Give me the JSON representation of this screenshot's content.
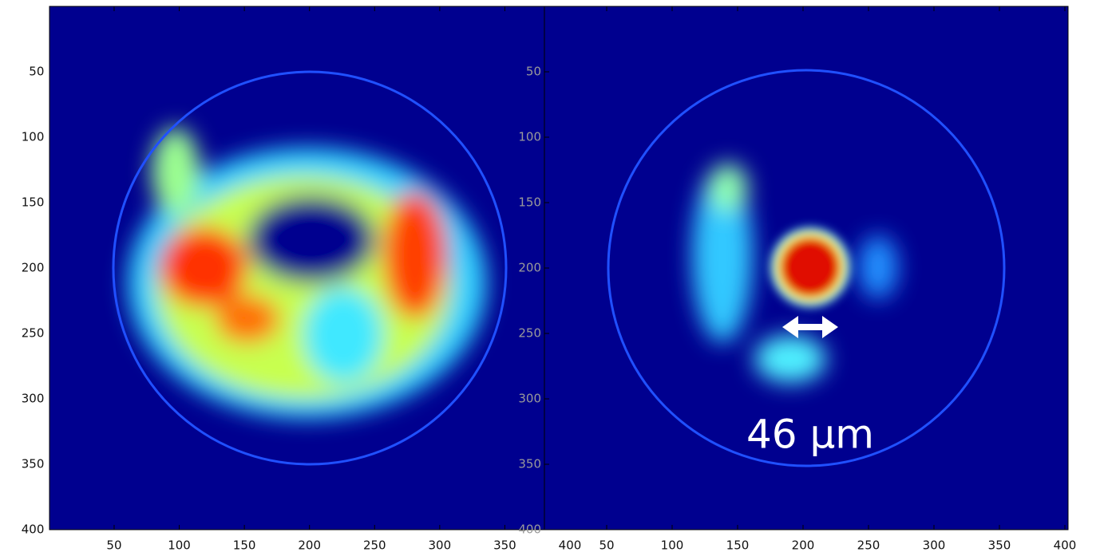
{
  "chart_data": [
    {
      "type": "heatmap",
      "xlim": [
        0,
        400
      ],
      "ylim": [
        0,
        400
      ],
      "yaxis_inverted": true,
      "xticks": [
        50,
        100,
        150,
        200,
        250,
        300,
        350,
        400
      ],
      "yticks": [
        50,
        100,
        150,
        200,
        250,
        300,
        350,
        400
      ]
    },
    {
      "type": "heatmap",
      "xlim": [
        0,
        400
      ],
      "ylim": [
        0,
        400
      ],
      "yaxis_inverted": true,
      "xticks": [
        50,
        100,
        150,
        200,
        250,
        300,
        350,
        400
      ],
      "yticks": [
        50,
        100,
        150,
        200,
        250,
        300,
        350,
        400
      ],
      "annotation": "46 μm"
    }
  ]
}
